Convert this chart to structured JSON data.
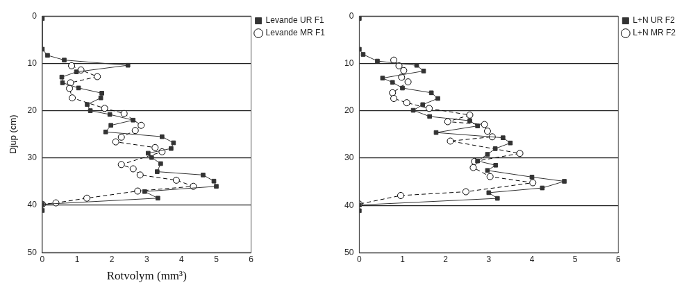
{
  "chart_data": [
    {
      "type": "line",
      "ylabel": "Djup (cm)",
      "xlabel": "Rotvolym (mm³)",
      "xlim": [
        0,
        6
      ],
      "xticks": [
        0,
        1,
        2,
        3,
        4,
        5,
        6
      ],
      "ylim": [
        50,
        0
      ],
      "yticks": [
        0,
        10,
        20,
        30,
        40,
        50
      ],
      "grid": "y",
      "legend": "right",
      "series": [
        {
          "name": "Levande UR F1",
          "color": "#333333",
          "marker": "square",
          "line_style": "solid",
          "x": [
            0,
            0,
            0.15,
            0.63,
            2.46,
            0.98,
            0.56,
            0.58,
            1.04,
            1.71,
            1.68,
            1.29,
            1.38,
            1.94,
            2.61,
            1.97,
            1.82,
            3.44,
            3.77,
            3.7,
            3.04,
            3.14,
            3.4,
            3.3,
            4.62,
            4.93,
            5.0,
            2.94,
            3.32,
            0,
            0
          ],
          "values": [
            0.5,
            7,
            8.3,
            9.3,
            10.4,
            11.8,
            12.9,
            14.1,
            15.2,
            16.3,
            17.3,
            18.7,
            20.0,
            20.8,
            22.0,
            23.1,
            24.5,
            25.5,
            26.8,
            28.0,
            29.0,
            29.9,
            31.2,
            32.9,
            33.6,
            34.9,
            36.0,
            37.1,
            38.5,
            39.8,
            41.1
          ]
        },
        {
          "name": "Levande MR F1",
          "color": "#000000",
          "marker": "circle",
          "line_style": "dashed",
          "x": [
            0.84,
            1.11,
            1.58,
            0.81,
            0.78,
            0.86,
            1.79,
            2.35,
            2.84,
            2.67,
            2.27,
            2.11,
            3.24,
            3.44,
            2.27,
            2.61,
            2.81,
            3.85,
            4.34,
            2.74,
            1.28,
            0.39,
            0
          ],
          "values": [
            10.5,
            11.4,
            12.8,
            14.1,
            15.3,
            17.3,
            19.5,
            20.6,
            23.1,
            24.2,
            25.6,
            26.6,
            27.8,
            28.7,
            31.4,
            32.3,
            33.6,
            34.7,
            36.0,
            37.0,
            38.5,
            39.5,
            39.8
          ]
        }
      ]
    },
    {
      "type": "line",
      "xlim": [
        0,
        6
      ],
      "xticks": [
        0,
        1,
        2,
        3,
        4,
        5,
        6
      ],
      "ylim": [
        50,
        0
      ],
      "yticks": [
        0,
        10,
        20,
        30,
        40,
        50
      ],
      "grid": "y",
      "legend": "right",
      "series": [
        {
          "name": "L+N UR F2",
          "color": "#333333",
          "marker": "square",
          "line_style": "solid",
          "x": [
            0,
            0,
            0.09,
            0.42,
            1.33,
            1.49,
            0.54,
            0.77,
            1.0,
            1.67,
            1.82,
            1.47,
            1.25,
            1.63,
            2.56,
            2.74,
            1.78,
            3.33,
            3.5,
            3.15,
            2.97,
            2.74,
            3.16,
            2.97,
            4.0,
            4.75,
            4.24,
            3.0,
            3.2,
            0,
            0
          ],
          "values": [
            0.5,
            7,
            8.1,
            9.5,
            10.4,
            11.6,
            13.1,
            14.0,
            15.2,
            16.2,
            17.4,
            18.7,
            19.9,
            21.2,
            22.1,
            23.2,
            24.6,
            25.7,
            26.8,
            28.0,
            29.2,
            30.6,
            31.5,
            32.6,
            34.0,
            34.9,
            36.3,
            37.3,
            38.5,
            39.9,
            41.1
          ]
        },
        {
          "name": "L+N MR F2",
          "color": "#000000",
          "marker": "circle",
          "line_style": "dashed",
          "x": [
            0.8,
            0.92,
            1.03,
            0.98,
            1.13,
            0.77,
            0.8,
            1.1,
            1.62,
            2.56,
            2.05,
            2.9,
            2.97,
            3.08,
            2.11,
            3.72,
            2.67,
            2.64,
            3.03,
            4.02,
            2.47,
            0.96,
            0
          ],
          "values": [
            9.3,
            10.5,
            11.5,
            12.9,
            13.9,
            16.2,
            17.4,
            18.3,
            19.5,
            20.9,
            22.3,
            22.9,
            24.3,
            25.5,
            26.4,
            29.0,
            30.7,
            32.0,
            33.9,
            35.2,
            37.1,
            37.9,
            39.7
          ]
        }
      ]
    }
  ]
}
